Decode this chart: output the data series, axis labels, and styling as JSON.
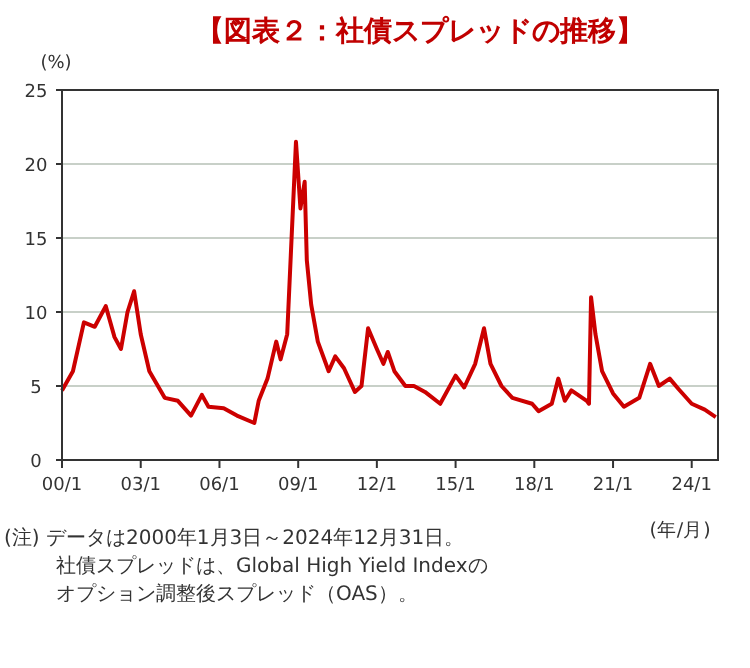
{
  "chart_data": {
    "type": "line",
    "title": "【図表２：社債スプレッドの推移】",
    "ylabel": "(%)",
    "xlabel": "(年/月)",
    "annotations": [
      "(注) データは2000年1月3日～2024年12月31日。",
      "社債スプレッドは、Global High Yield Indexの",
      "オプション調整後スプレッド（OAS）。"
    ],
    "xlim": [
      "2000-01",
      "2025-01"
    ],
    "xticks": [
      {
        "value": "2000-01",
        "label": "00/1"
      },
      {
        "value": "2003-01",
        "label": "03/1"
      },
      {
        "value": "2006-01",
        "label": "06/1"
      },
      {
        "value": "2009-01",
        "label": "09/1"
      },
      {
        "value": "2012-01",
        "label": "12/1"
      },
      {
        "value": "2015-01",
        "label": "15/1"
      },
      {
        "value": "2018-01",
        "label": "18/1"
      },
      {
        "value": "2021-01",
        "label": "21/1"
      },
      {
        "value": "2024-01",
        "label": "24/1"
      }
    ],
    "ylim": [
      0,
      25
    ],
    "yticks": [
      0,
      5,
      10,
      15,
      20,
      25
    ],
    "grid": "y",
    "marker": "none",
    "line_style": "solid",
    "series": [
      {
        "color": "#cc0000",
        "x": [
          "2000-01",
          "2000-06",
          "2000-11",
          "2001-04",
          "2001-09",
          "2002-01",
          "2002-04",
          "2002-07",
          "2002-10",
          "2003-01",
          "2003-05",
          "2003-12",
          "2004-06",
          "2004-12",
          "2005-05",
          "2005-08",
          "2006-03",
          "2006-09",
          "2007-05",
          "2007-07",
          "2007-11",
          "2008-03",
          "2008-05",
          "2008-08",
          "2008-12",
          "2009-02",
          "2009-04",
          "2009-05",
          "2009-07",
          "2009-10",
          "2010-03",
          "2010-06",
          "2010-10",
          "2011-03",
          "2011-06",
          "2011-09",
          "2012-01",
          "2012-04",
          "2012-06",
          "2012-09",
          "2013-02",
          "2013-06",
          "2013-11",
          "2014-06",
          "2015-01",
          "2015-05",
          "2015-10",
          "2016-02",
          "2016-05",
          "2016-10",
          "2017-03",
          "2017-12",
          "2018-03",
          "2018-09",
          "2018-12",
          "2019-03",
          "2019-06",
          "2020-01",
          "2020-02",
          "2020-03",
          "2020-05",
          "2020-08",
          "2021-01",
          "2021-06",
          "2022-01",
          "2022-06",
          "2022-10",
          "2023-03",
          "2023-07",
          "2024-01",
          "2024-07",
          "2024-12"
        ],
        "values": [
          4.7,
          6.0,
          9.3,
          9.0,
          10.4,
          8.3,
          7.5,
          10.0,
          11.4,
          8.5,
          6.0,
          4.2,
          4.0,
          3.0,
          4.4,
          3.6,
          3.5,
          3.0,
          2.5,
          4.0,
          5.5,
          8.0,
          6.8,
          8.5,
          21.5,
          17.0,
          18.8,
          13.5,
          10.5,
          8.0,
          6.0,
          7.0,
          6.2,
          4.6,
          5.0,
          8.9,
          7.5,
          6.5,
          7.3,
          6.0,
          5.0,
          5.0,
          4.6,
          3.8,
          5.7,
          4.9,
          6.5,
          8.9,
          6.5,
          5.0,
          4.2,
          3.8,
          3.3,
          3.8,
          5.5,
          4.0,
          4.7,
          4.0,
          3.8,
          11.0,
          8.5,
          6.0,
          4.5,
          3.6,
          4.2,
          6.5,
          5.0,
          5.5,
          4.8,
          3.8,
          3.4,
          2.9
        ]
      }
    ]
  }
}
